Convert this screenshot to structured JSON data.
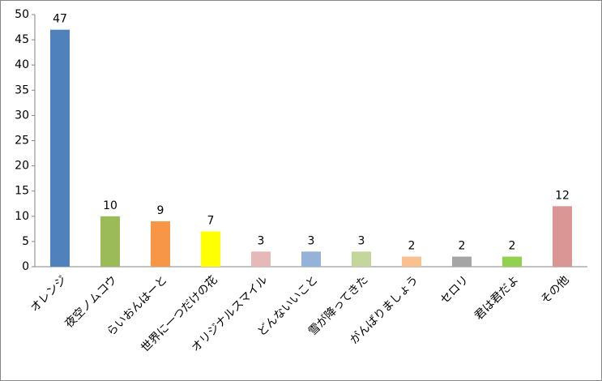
{
  "chart_data": {
    "type": "bar",
    "categories": [
      "オレンジ",
      "夜空ノムコウ",
      "らいおんはーと",
      "世界に一つだけの花",
      "オリジナルスマイル",
      "どんないいこと",
      "雪が降ってきた",
      "がんばりましょう",
      "セロリ",
      "君は君だよ",
      "その他"
    ],
    "values": [
      47,
      10,
      9,
      7,
      3,
      3,
      3,
      2,
      2,
      2,
      12
    ],
    "colors": [
      "#4f81bd",
      "#9bbb59",
      "#f79646",
      "#ffff00",
      "#e6b9b8",
      "#95b3d7",
      "#c3d69b",
      "#fac090",
      "#a5a5a5",
      "#92d050",
      "#d99694"
    ],
    "ylim": [
      0,
      50
    ],
    "yticks": [
      0,
      5,
      10,
      15,
      20,
      25,
      30,
      35,
      40,
      45,
      50
    ],
    "grid": false
  }
}
